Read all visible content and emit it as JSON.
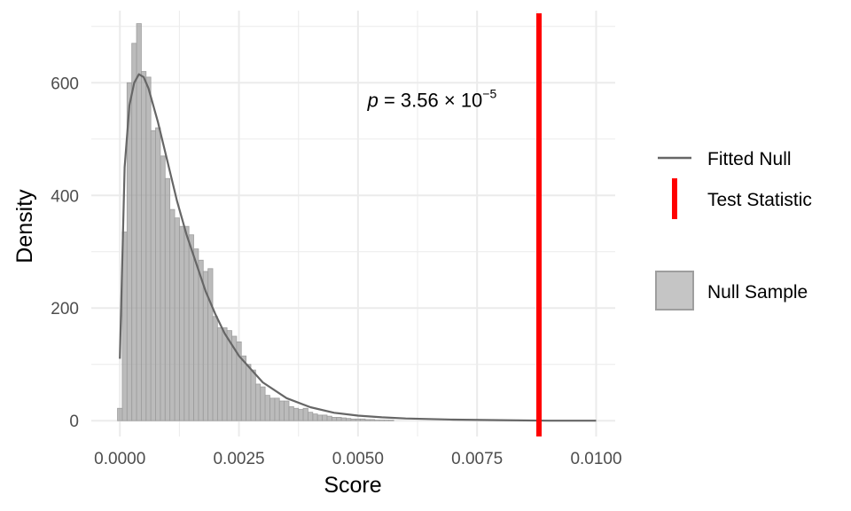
{
  "chart_data": {
    "type": "bar",
    "title": "",
    "xlabel": "Score",
    "ylabel": "Density",
    "xlim": [
      -0.0006,
      0.0104
    ],
    "ylim": [
      -28,
      728
    ],
    "x_ticks": [
      0.0,
      0.0025,
      0.005,
      0.0075,
      0.01
    ],
    "x_tick_labels": [
      "0.0000",
      "0.0025",
      "0.0050",
      "0.0075",
      "0.0100"
    ],
    "y_ticks": [
      0,
      200,
      400,
      600
    ],
    "y_tick_labels": [
      "0",
      "200",
      "400",
      "600"
    ],
    "grid": true,
    "legend_position": "right",
    "series": [
      {
        "name": "Null Sample",
        "kind": "histogram",
        "bin_width": 0.0001,
        "bin_start": -5e-05,
        "color": "#9e9e9e",
        "values": [
          22,
          335,
          600,
          670,
          705,
          620,
          610,
          515,
          520,
          470,
          430,
          375,
          360,
          345,
          345,
          330,
          305,
          285,
          265,
          270,
          185,
          165,
          165,
          160,
          150,
          140,
          115,
          100,
          90,
          65,
          60,
          45,
          40,
          40,
          35,
          35,
          25,
          22,
          20,
          22,
          15,
          12,
          10,
          10,
          8,
          6,
          6,
          5,
          4,
          3,
          3,
          3,
          2,
          2,
          1,
          1,
          1,
          1,
          0,
          0,
          0,
          0,
          0,
          0,
          0,
          0,
          0,
          0,
          0,
          0,
          0,
          0,
          0,
          0,
          0,
          0,
          0,
          0,
          0,
          0,
          0,
          0,
          0,
          0,
          0,
          0,
          0,
          0,
          0,
          0,
          0,
          0,
          0,
          0,
          0,
          0,
          0,
          0,
          0,
          0
        ]
      },
      {
        "name": "Fitted Null",
        "kind": "line",
        "color": "#666666",
        "x": [
          0.0,
          0.0001,
          0.0002,
          0.0003,
          0.0004,
          0.0005,
          0.0006,
          0.0008,
          0.001,
          0.0012,
          0.0014,
          0.0016,
          0.0018,
          0.002,
          0.0022,
          0.0025,
          0.003,
          0.0035,
          0.004,
          0.0045,
          0.005,
          0.0055,
          0.006,
          0.007,
          0.008,
          0.009,
          0.01
        ],
        "y": [
          110,
          450,
          560,
          600,
          615,
          610,
          590,
          530,
          460,
          390,
          330,
          280,
          230,
          190,
          155,
          115,
          68,
          40,
          24,
          14,
          9,
          6,
          4,
          2,
          1,
          0,
          0
        ]
      },
      {
        "name": "Test Statistic",
        "kind": "vline",
        "color": "#ff0000",
        "x": 0.0088
      }
    ],
    "annotations": [
      {
        "text_prefix": "p",
        "text_eq": " = 3.56 × 10",
        "text_sup": "−5",
        "x": 0.0052,
        "y": 570
      }
    ],
    "legend": [
      {
        "label": "Fitted Null",
        "key": "line"
      },
      {
        "label": "Test Statistic",
        "key": "vline"
      },
      {
        "label": "Null Sample",
        "key": "fill"
      }
    ]
  },
  "colors": {
    "panel_grid": "#ebebeb",
    "bar_fill": "#9e9e9e",
    "bar_stroke": "#9e9e9e",
    "fit_line": "#666666",
    "test_stat": "#ff0000",
    "tick_text": "#4d4d4d"
  }
}
